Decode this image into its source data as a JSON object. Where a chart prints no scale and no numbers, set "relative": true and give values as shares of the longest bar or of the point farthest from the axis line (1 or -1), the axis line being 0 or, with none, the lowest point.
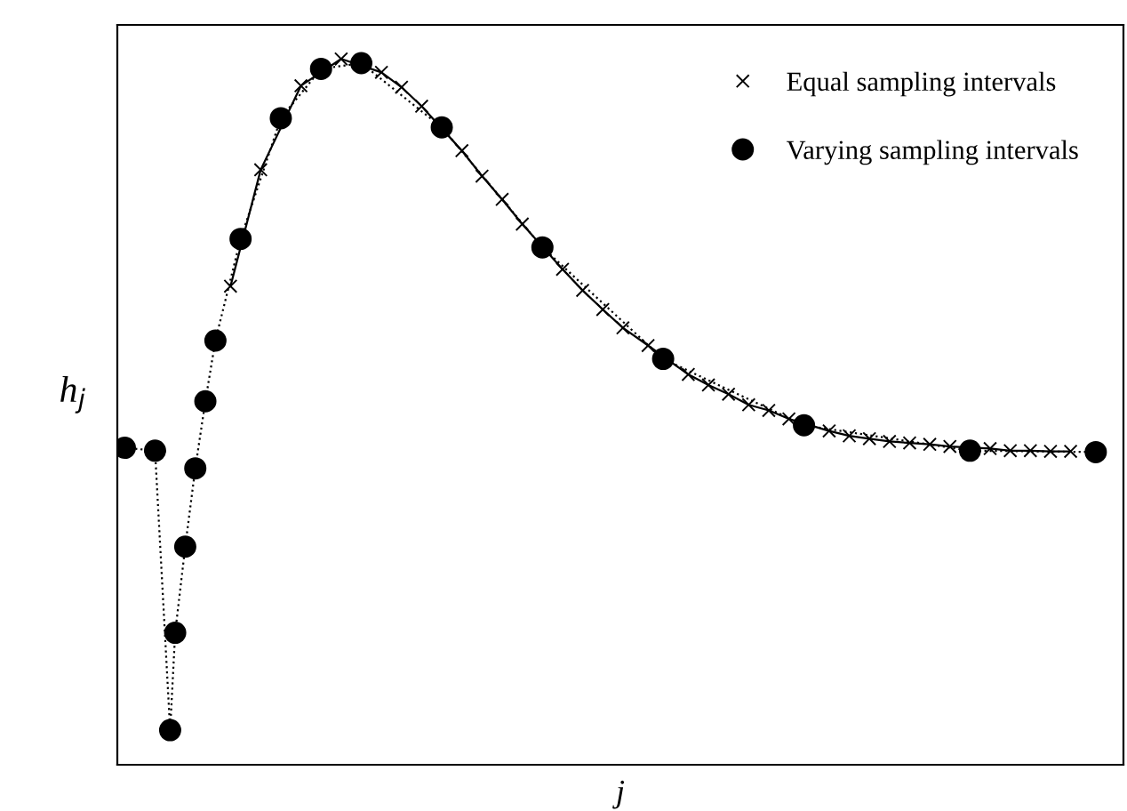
{
  "chart_data": {
    "type": "line",
    "relative": true,
    "xlabel": "j",
    "ylabel": "h$_{j}$",
    "legend": "top right",
    "tick_labels": false,
    "grid": false,
    "categories": [
      null,
      null,
      null,
      null,
      null,
      null,
      null,
      null,
      null,
      null,
      null,
      null,
      null,
      null,
      null,
      null,
      null,
      null,
      null,
      null,
      null,
      null,
      null,
      null,
      null,
      null,
      null,
      null,
      null,
      null,
      null,
      null,
      null,
      null,
      null,
      null,
      null,
      null,
      null,
      null,
      null,
      null,
      null,
      null,
      null,
      null,
      null,
      null,
      null,
      null,
      null,
      null,
      null,
      null,
      null,
      null,
      null,
      null,
      null,
      null,
      null,
      null,
      null,
      null,
      null,
      null,
      null,
      null,
      null,
      null,
      null,
      null,
      null,
      null,
      null,
      null,
      null,
      null,
      null,
      null,
      null,
      null,
      null,
      null,
      null,
      null,
      null,
      null,
      null,
      null,
      null,
      null,
      null,
      null,
      null,
      null,
      null,
      null,
      null,
      null,
      null,
      null,
      null,
      null,
      null,
      null,
      null,
      null,
      null,
      null,
      null,
      null,
      null,
      null,
      null,
      null,
      null,
      null,
      null,
      null,
      null,
      null,
      null,
      null,
      null,
      null,
      null,
      null,
      null,
      null,
      null,
      null,
      null,
      null,
      null,
      null,
      null,
      null,
      null,
      null,
      null,
      null,
      null,
      null,
      null,
      null,
      null,
      null,
      null,
      null,
      null,
      null,
      null,
      null,
      null,
      null,
      null,
      null,
      null,
      null,
      null,
      null,
      null,
      null,
      null,
      null,
      null,
      null,
      null,
      null,
      null,
      null,
      null,
      null,
      null,
      null,
      null,
      null,
      null,
      null,
      null,
      null,
      null,
      null,
      null,
      null,
      null,
      null,
      null,
      null,
      null,
      null,
      null,
      null,
      null,
      null,
      null,
      null,
      null,
      null
    ],
    "series": [
      {
        "name": "Equal sampling intervals",
        "color": "#000000",
        "marker": "cross",
        "line_style": "solid",
        "values": [
          null,
          null,
          null,
          null,
          null,
          null,
          null,
          null,
          null,
          null,
          null,
          null,
          null,
          null,
          null,
          null,
          null,
          null,
          null,
          null,
          null,
          null,
          0.678,
          null,
          null,
          null,
          null,
          null,
          0.843,
          null,
          null,
          null,
          null,
          null,
          null,
          null,
          0.962,
          null,
          null,
          null,
          null,
          null,
          null,
          null,
          1.0,
          null,
          null,
          null,
          null,
          null,
          null,
          null,
          0.981,
          null,
          null,
          null,
          0.96,
          null,
          null,
          null,
          0.933,
          null,
          null,
          null,
          null,
          null,
          null,
          null,
          0.87,
          null,
          null,
          null,
          0.834,
          null,
          null,
          null,
          0.801,
          null,
          null,
          null,
          0.766,
          null,
          null,
          null,
          null,
          null,
          null,
          null,
          0.702,
          null,
          null,
          null,
          0.672,
          null,
          null,
          null,
          0.645,
          null,
          null,
          null,
          0.619,
          null,
          null,
          null,
          null,
          0.594,
          null,
          null,
          null,
          null,
          null,
          null,
          null,
          0.553,
          null,
          null,
          null,
          0.538,
          null,
          null,
          null,
          0.525,
          null,
          null,
          null,
          0.51,
          null,
          null,
          null,
          0.502,
          null,
          null,
          null,
          0.49,
          null,
          null,
          null,
          null,
          null,
          null,
          null,
          0.473,
          null,
          null,
          null,
          0.466,
          null,
          null,
          null,
          0.462,
          null,
          null,
          null,
          0.458,
          null,
          null,
          null,
          0.456,
          null,
          null,
          null,
          0.454,
          null,
          null,
          null,
          0.451,
          null,
          null,
          null,
          null,
          null,
          null,
          null,
          0.448,
          null,
          null,
          null,
          0.445,
          null,
          null,
          null,
          0.445,
          null,
          null,
          null,
          0.444,
          null,
          null,
          null,
          0.444,
          null,
          null,
          null,
          null,
          null,
          null,
          null,
          null,
          null,
          null
        ]
      },
      {
        "name": "Varying sampling intervals",
        "color": "#000000",
        "marker": "circle",
        "line_style": "dotted",
        "values": [
          null,
          0.449,
          null,
          null,
          null,
          null,
          null,
          0.445,
          null,
          null,
          0.049,
          0.187,
          null,
          0.309,
          null,
          0.42,
          null,
          0.515,
          null,
          0.601,
          null,
          null,
          null,
          null,
          0.745,
          null,
          null,
          null,
          null,
          null,
          null,
          null,
          0.916,
          null,
          null,
          null,
          null,
          null,
          null,
          null,
          0.986,
          null,
          null,
          null,
          null,
          null,
          null,
          null,
          0.994,
          null,
          null,
          null,
          null,
          null,
          null,
          null,
          null,
          null,
          null,
          null,
          null,
          null,
          null,
          null,
          0.903,
          null,
          null,
          null,
          null,
          null,
          null,
          null,
          null,
          null,
          null,
          null,
          null,
          null,
          null,
          null,
          null,
          null,
          null,
          null,
          0.733,
          null,
          null,
          null,
          null,
          null,
          null,
          null,
          null,
          null,
          null,
          null,
          null,
          null,
          null,
          null,
          null,
          null,
          null,
          null,
          null,
          null,
          null,
          null,
          0.575,
          null,
          null,
          null,
          null,
          null,
          null,
          null,
          null,
          null,
          null,
          null,
          null,
          null,
          null,
          null,
          null,
          null,
          null,
          null,
          null,
          null,
          null,
          null,
          null,
          null,
          null,
          null,
          0.481,
          null,
          null,
          null,
          null,
          null,
          null,
          null,
          null,
          null,
          null,
          null,
          null,
          null,
          null,
          null,
          null,
          null,
          null,
          null,
          null,
          null,
          null,
          null,
          null,
          null,
          null,
          null,
          null,
          null,
          null,
          null,
          null,
          0.445,
          null,
          null,
          null,
          null,
          null,
          null,
          null,
          null,
          null,
          null,
          null,
          null,
          null,
          null,
          null,
          null,
          null,
          null,
          null,
          null,
          null,
          null,
          null,
          null,
          0.443,
          null,
          null,
          null,
          null,
          null
        ]
      }
    ]
  }
}
